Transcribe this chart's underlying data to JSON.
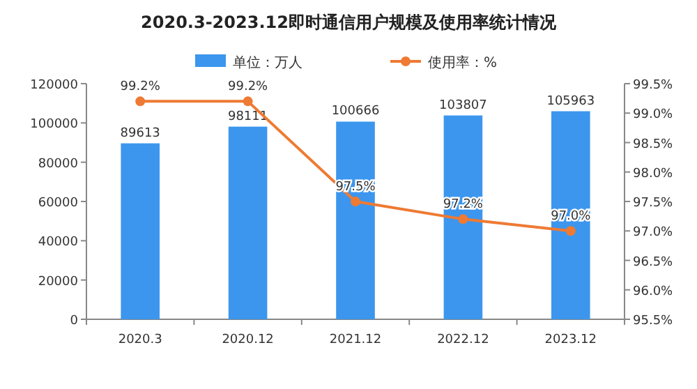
{
  "chart_data": {
    "type": "bar",
    "title": "2020.3-2023.12即时通信用户规模及使用率统计情况",
    "categories": [
      "2020.3",
      "2020.12",
      "2021.12",
      "2022.12",
      "2023.12"
    ],
    "series": [
      {
        "name": "单位：万人",
        "color": "#3c96ee",
        "values": [
          89613,
          98111,
          100666,
          103807,
          105963
        ]
      },
      {
        "name": "使用率：%",
        "type": "line",
        "axis": "y2",
        "color": "#ee7a33",
        "marker": "circle",
        "values": [
          99.2,
          99.2,
          97.5,
          97.2,
          97.0
        ],
        "value_labels": [
          "99.2%",
          "99.2%",
          "97.5%",
          "97.2%",
          "97.0%"
        ]
      }
    ],
    "data_labels": true,
    "ylim": [
      0,
      120000
    ],
    "yticks": [
      0,
      20000,
      40000,
      60000,
      80000,
      100000,
      120000
    ],
    "y2lim": [
      95.5,
      99.5
    ],
    "y2ticks": [
      {
        "value": 95.5,
        "label": "95.5%"
      },
      {
        "value": 96.0,
        "label": "96.0%"
      },
      {
        "value": 96.5,
        "label": "96.5%"
      },
      {
        "value": 97.0,
        "label": "97.0%"
      },
      {
        "value": 97.5,
        "label": "97.5%"
      },
      {
        "value": 98.0,
        "label": "98.0%"
      },
      {
        "value": 98.5,
        "label": "98.5%"
      },
      {
        "value": 99.0,
        "label": "99.0%"
      },
      {
        "value": 99.5,
        "label": "99.5%"
      }
    ],
    "grid": false,
    "legend": "top"
  }
}
